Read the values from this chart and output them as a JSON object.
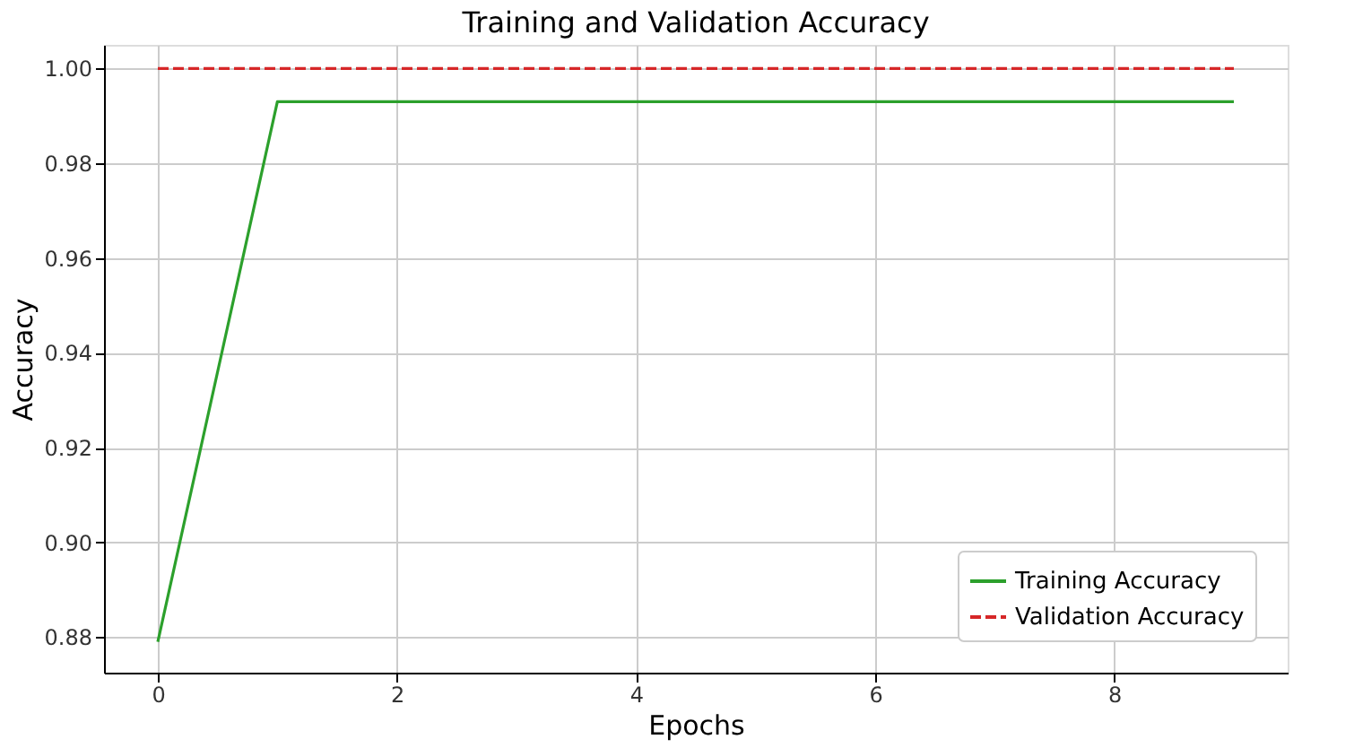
{
  "chart_data": {
    "type": "line",
    "title": "Training and Validation Accuracy",
    "xlabel": "Epochs",
    "ylabel": "Accuracy",
    "x": [
      0,
      1,
      2,
      3,
      4,
      5,
      6,
      7,
      8,
      9
    ],
    "series": [
      {
        "name": "Training Accuracy",
        "color": "#2ca02c",
        "line_style": "solid",
        "values": [
          0.879,
          0.993,
          0.993,
          0.993,
          0.993,
          0.993,
          0.993,
          0.993,
          0.993,
          0.993
        ]
      },
      {
        "name": "Validation Accuracy",
        "color": "#d62728",
        "line_style": "dashed",
        "values": [
          1.0,
          1.0,
          1.0,
          1.0,
          1.0,
          1.0,
          1.0,
          1.0,
          1.0,
          1.0
        ]
      }
    ],
    "xlim": [
      -0.45,
      9.45
    ],
    "xticks": [
      0,
      2,
      4,
      6,
      8
    ],
    "ylim": [
      0.8725,
      1.005
    ],
    "yticks": [
      {
        "value": 0.88,
        "label": "0.88"
      },
      {
        "value": 0.9,
        "label": "0.90"
      },
      {
        "value": 0.92,
        "label": "0.92"
      },
      {
        "value": 0.94,
        "label": "0.94"
      },
      {
        "value": 0.96,
        "label": "0.96"
      },
      {
        "value": 0.98,
        "label": "0.98"
      },
      {
        "value": 1.0,
        "label": "1.00"
      }
    ],
    "grid": true,
    "legend": "bottom right",
    "marker": "none"
  }
}
